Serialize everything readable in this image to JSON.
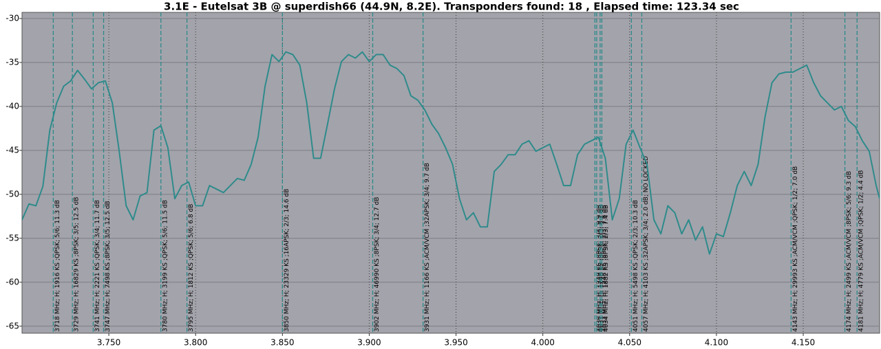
{
  "chart_data": {
    "type": "line",
    "title": "3.1E - Eutelsat 3B @ superdish66 (44.9N, 8.2E). Transponders found: 18 , Elapsed time: 123.34 sec",
    "color": "#2e8b8b",
    "marker_color": "#2a8a8a",
    "background": "#a3a3ab",
    "grid": true,
    "xlim": [
      3.7,
      4.194
    ],
    "ylim": [
      -29.3,
      -65.8
    ],
    "xticks": [
      {
        "value": 3.75,
        "label": "3.750"
      },
      {
        "value": 3.8,
        "label": "3.800"
      },
      {
        "value": 3.85,
        "label": "3.850"
      },
      {
        "value": 3.9,
        "label": "3.900"
      },
      {
        "value": 3.95,
        "label": "3.950"
      },
      {
        "value": 4.0,
        "label": "4.000"
      },
      {
        "value": 4.05,
        "label": "4.050"
      },
      {
        "value": 4.1,
        "label": "4.100"
      },
      {
        "value": 4.15,
        "label": "4.150"
      }
    ],
    "yticks": [
      -30,
      -35,
      -40,
      -45,
      -50,
      -55,
      -60,
      -65
    ],
    "x": [
      3.7,
      3.704,
      3.708,
      3.712,
      3.716,
      3.72,
      3.724,
      3.728,
      3.732,
      3.736,
      3.74,
      3.744,
      3.748,
      3.752,
      3.756,
      3.76,
      3.764,
      3.768,
      3.772,
      3.776,
      3.78,
      3.784,
      3.788,
      3.792,
      3.796,
      3.8,
      3.804,
      3.808,
      3.812,
      3.816,
      3.82,
      3.824,
      3.828,
      3.832,
      3.836,
      3.84,
      3.844,
      3.848,
      3.852,
      3.856,
      3.86,
      3.864,
      3.868,
      3.872,
      3.876,
      3.88,
      3.884,
      3.888,
      3.892,
      3.896,
      3.9,
      3.904,
      3.908,
      3.912,
      3.916,
      3.92,
      3.924,
      3.928,
      3.932,
      3.936,
      3.94,
      3.944,
      3.948,
      3.952,
      3.956,
      3.96,
      3.964,
      3.968,
      3.972,
      3.976,
      3.98,
      3.984,
      3.988,
      3.992,
      3.996,
      4.0,
      4.004,
      4.008,
      4.012,
      4.016,
      4.02,
      4.024,
      4.028,
      4.032,
      4.036,
      4.04,
      4.044,
      4.048,
      4.052,
      4.056,
      4.06,
      4.064,
      4.068,
      4.072,
      4.076,
      4.08,
      4.084,
      4.088,
      4.092,
      4.096,
      4.1,
      4.104,
      4.108,
      4.112,
      4.116,
      4.12,
      4.124,
      4.128,
      4.132,
      4.136,
      4.14,
      4.144,
      4.148,
      4.152,
      4.156,
      4.16,
      4.164,
      4.168,
      4.172,
      4.176,
      4.18,
      4.184,
      4.188,
      4.192,
      4.194
    ],
    "values": [
      -52.9,
      -51.1,
      -51.3,
      -49.1,
      -42.7,
      -39.6,
      -37.7,
      -37.1,
      -35.9,
      -36.9,
      -38.0,
      -37.3,
      -37.1,
      -39.6,
      -45.1,
      -51.3,
      -52.9,
      -50.2,
      -49.8,
      -42.7,
      -42.2,
      -44.7,
      -50.5,
      -49.0,
      -48.6,
      -51.3,
      -51.3,
      -49.0,
      -49.4,
      -49.8,
      -49.0,
      -48.2,
      -48.4,
      -46.6,
      -43.5,
      -37.7,
      -34.1,
      -34.9,
      -33.8,
      -34.1,
      -35.3,
      -39.6,
      -45.9,
      -45.9,
      -42.0,
      -38.0,
      -34.9,
      -34.1,
      -34.5,
      -33.8,
      -34.9,
      -34.1,
      -34.1,
      -35.3,
      -35.7,
      -36.5,
      -38.8,
      -39.3,
      -40.4,
      -42.0,
      -43.1,
      -44.7,
      -46.6,
      -50.5,
      -52.9,
      -52.1,
      -53.7,
      -53.7,
      -47.4,
      -46.6,
      -45.5,
      -45.5,
      -44.3,
      -43.9,
      -45.1,
      -44.7,
      -44.3,
      -46.6,
      -49.0,
      -49.0,
      -45.5,
      -44.3,
      -43.9,
      -43.5,
      -45.9,
      -52.9,
      -50.5,
      -44.3,
      -42.7,
      -44.7,
      -46.6,
      -52.9,
      -54.5,
      -51.3,
      -52.1,
      -54.5,
      -52.9,
      -55.2,
      -53.7,
      -56.8,
      -54.5,
      -54.8,
      -52.1,
      -49.0,
      -47.4,
      -49.0,
      -46.6,
      -41.2,
      -37.3,
      -36.3,
      -36.1,
      -36.1,
      -35.7,
      -35.3,
      -37.3,
      -38.8,
      -39.6,
      -40.4,
      -40.0,
      -41.6,
      -42.3,
      -43.9,
      -45.1,
      -49.0,
      -50.5
    ],
    "markers": [
      {
        "x": 3.718,
        "label": "3718 MHz; H; 1916 KS ;QPSK; 5/6; 11.3 dB"
      },
      {
        "x": 3.729,
        "label": "3729 MHz; H; 16829 KS ;8PSK; 3/5; 12.5 dB"
      },
      {
        "x": 3.741,
        "label": "3741 MHz; H; 2221 KS ;QPSK; 3/4; 11.7 dB"
      },
      {
        "x": 3.747,
        "label": "3747 MHz; H; 7498 KS ;8PSK; 3/5; 12.5 dB"
      },
      {
        "x": 3.78,
        "label": "3780 MHz; H; 3199 KS ;QPSK; 5/6; 11.5 dB"
      },
      {
        "x": 3.795,
        "label": "3795 MHz; H; 1812 KS ;QPSK; 5/6; 6.8 dB"
      },
      {
        "x": 3.85,
        "label": "3850 MHz; H; 23329 KS ;16APSK; 2/3; 14.6 dB"
      },
      {
        "x": 3.902,
        "label": "3902 MHz; H; 46990 KS ;8PSK; 3/4; 12.7 dB"
      },
      {
        "x": 3.931,
        "label": "3931 MHz; H; 1166 KS ;ACM/VCM ;32APSK; 3/4; 9.7 dB"
      },
      {
        "x": 4.03,
        "label": "4030 MHz; H; 1249 KS ;8PSK; 3/4; 9.9 dB"
      },
      {
        "x": 4.031,
        "label": "4031 MHz; H; 1248 KS ;8PSK; 2/3; 8.2 dB"
      },
      {
        "x": 4.033,
        "label": "4033 MHz; H; 1248 KS ;8PSK; 2/3; 7.6 dB"
      },
      {
        "x": 4.034,
        "label": "4034 MHz; H; 1882 KS ;8PSK; 2/3; 7.4 dB"
      },
      {
        "x": 4.051,
        "label": "4051 MHz; H; 5498 KS ;QPSK; 2/3; 10.3 dB"
      },
      {
        "x": 4.057,
        "label": "4057 MHz; H; 4103 KS ;32APSK; 3/4; 2.0 dB; NO LOCKED"
      },
      {
        "x": 4.143,
        "label": "4143 MHz; H; 29993 KS ;ACM/VCM ;QPSK; 1/2; 7.0 dB"
      },
      {
        "x": 4.174,
        "label": "4174 MHz; H; 2499 KS ;ACM/VCM ;8PSK; 5/6; 9.3 dB"
      },
      {
        "x": 4.181,
        "label": "4181 MHz; H; 4779 KS ;ACM/VCM ;QPSK; 1/2; 4.4 dB"
      }
    ]
  }
}
